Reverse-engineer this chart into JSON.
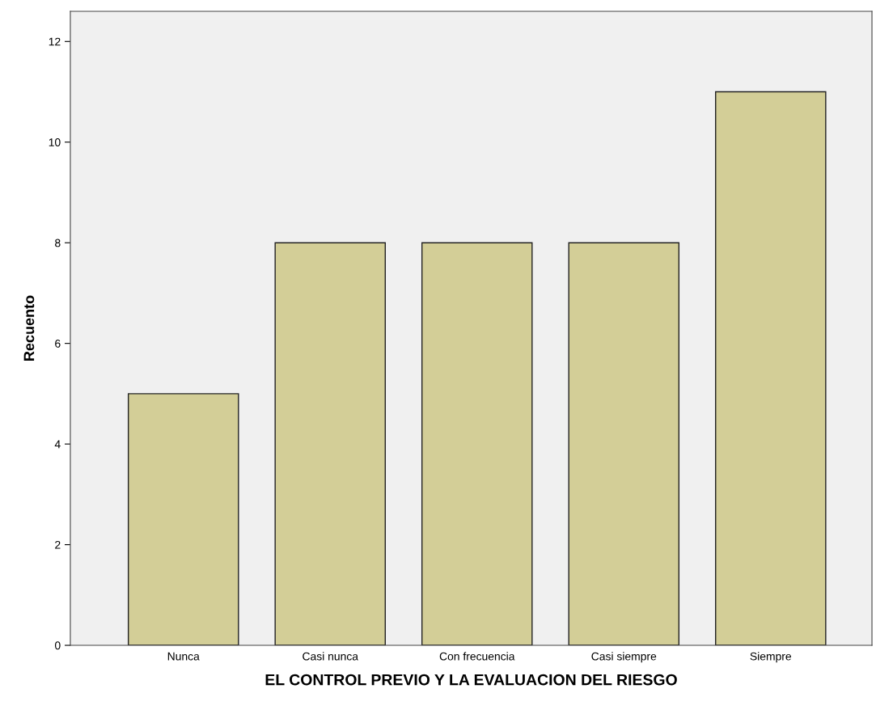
{
  "chart_data": {
    "type": "bar",
    "xlabel": "EL CONTROL PREVIO Y LA EVALUACION DEL RIESGO",
    "ylabel": "Recuento",
    "categories": [
      "Nunca",
      "Casi nunca",
      "Con frecuencia",
      "Casi siempre",
      "Siempre"
    ],
    "values": [
      5,
      8,
      8,
      8,
      11
    ],
    "color": "#d3ce97",
    "ylim": [
      0,
      12.6
    ],
    "yticks": [
      0,
      2,
      4,
      6,
      8,
      10,
      12
    ],
    "grid": false,
    "legend": false
  }
}
